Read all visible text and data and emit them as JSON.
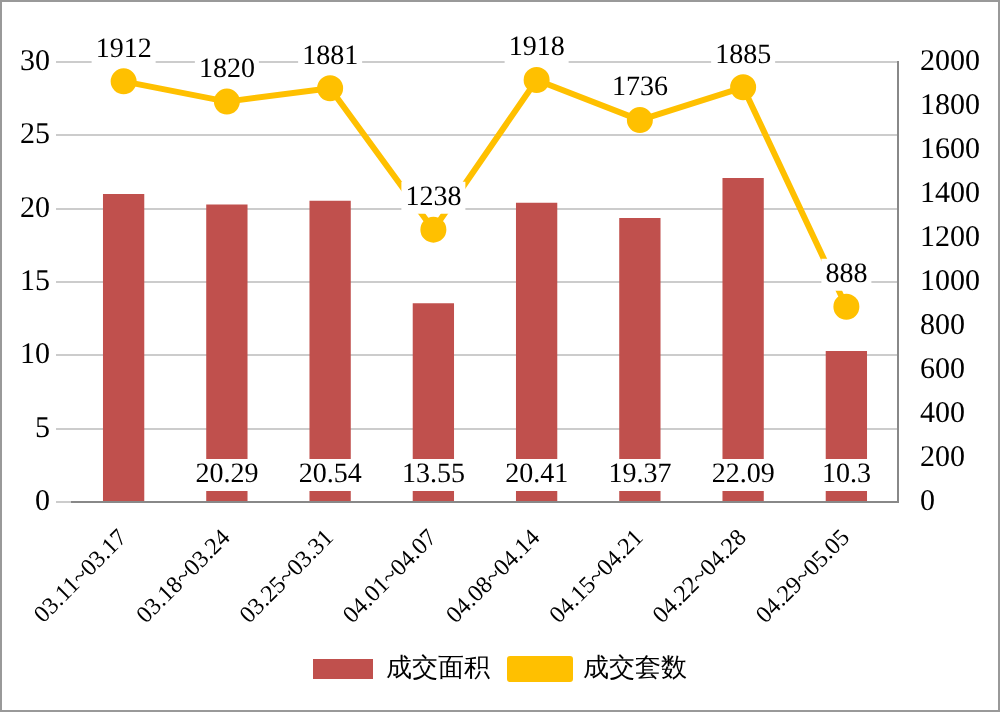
{
  "chart_data": {
    "type": "bar",
    "categories": [
      "03.11~03.17",
      "03.18~03.24",
      "03.25~03.31",
      "04.01~04.07",
      "04.08~04.14",
      "04.15~04.21",
      "04.22~04.28",
      "04.29~05.05"
    ],
    "series": [
      {
        "name": "成交面积",
        "color": "#c0504d",
        "values": [
          21.0,
          20.29,
          20.54,
          13.55,
          20.41,
          19.37,
          22.09,
          10.3
        ],
        "value_labels": [
          null,
          "20.29",
          "20.54",
          "13.55",
          "20.41",
          "19.37",
          "22.09",
          "10.3"
        ]
      },
      {
        "name": "成交套数",
        "type": "line",
        "axis": "y2",
        "color": "#ffc000",
        "values": [
          1912,
          1820,
          1881,
          1238,
          1918,
          1736,
          1885,
          888
        ],
        "value_labels": [
          "1912",
          "1820",
          "1881",
          "1238",
          "1918",
          "1736",
          "1885",
          "888"
        ]
      }
    ],
    "ylim": [
      0,
      30
    ],
    "yticks": [
      0,
      5,
      10,
      15,
      20,
      25,
      30
    ],
    "y2lim": [
      0,
      2000
    ],
    "y2ticks": [
      0,
      200,
      400,
      600,
      800,
      1000,
      1200,
      1400,
      1600,
      1800,
      2000
    ],
    "grid": "y",
    "legend": "bottom",
    "marker": "circle"
  }
}
